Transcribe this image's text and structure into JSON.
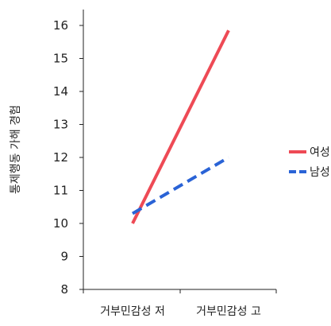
{
  "chart_data": {
    "type": "line",
    "title": "",
    "xlabel": "",
    "ylabel": "통제행동 가해 경험",
    "categories": [
      "거부민감성 저",
      "거부민감성 고"
    ],
    "ylim": [
      8,
      16
    ],
    "yticks": [
      8,
      9,
      10,
      11,
      12,
      13,
      14,
      15,
      16
    ],
    "grid": false,
    "legend": "right",
    "series": [
      {
        "name": "여성",
        "values": [
          10.0,
          15.85
        ],
        "color": "#ee4a55",
        "dash": "solid"
      },
      {
        "name": "남성",
        "values": [
          10.3,
          12.0
        ],
        "color": "#2a63d6",
        "dash": "dashed"
      }
    ]
  }
}
